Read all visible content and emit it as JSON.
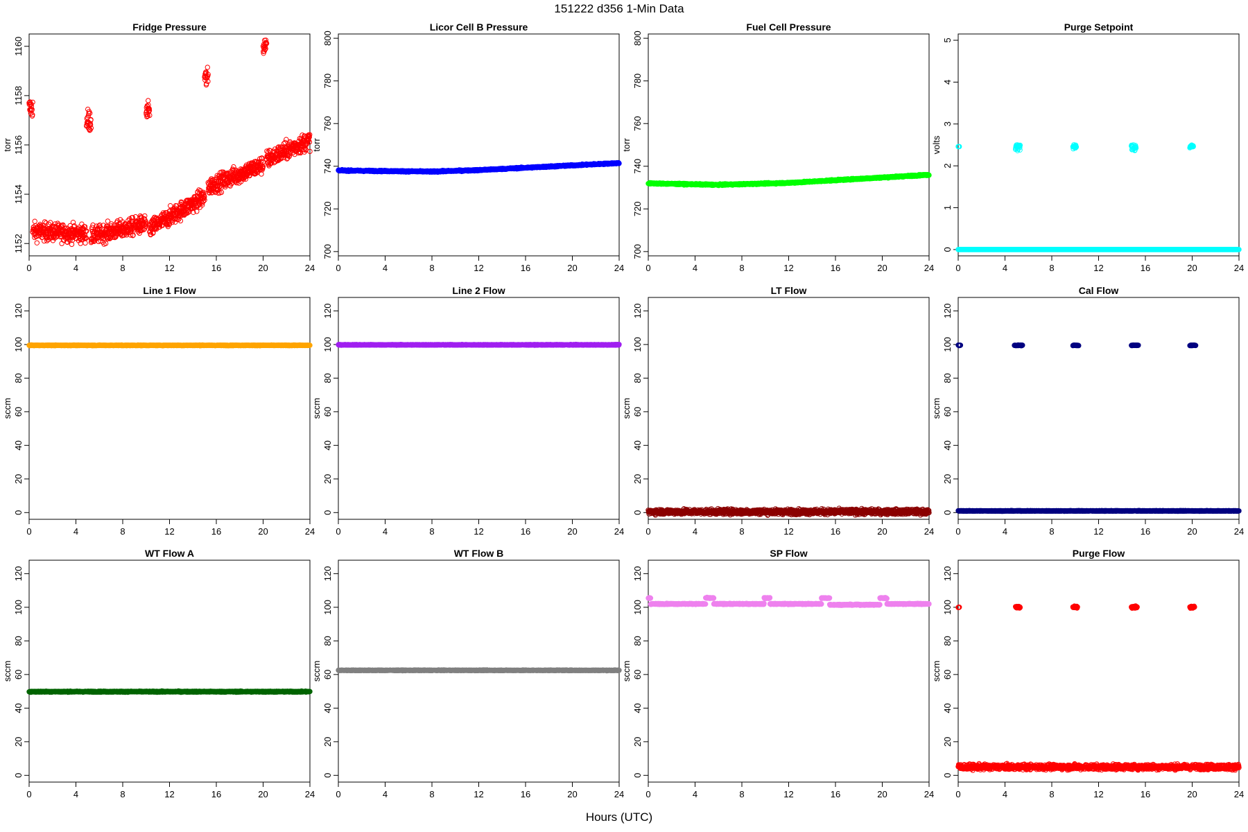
{
  "figure": {
    "title": "151222   d356   1-Min Data",
    "xlabel": "Hours (UTC)"
  },
  "chart_data": [
    {
      "type": "scatter",
      "title": "Fridge Pressure",
      "ylabel": "torr",
      "color": "#ff0000",
      "marker": "open-circle",
      "xlim": [
        0,
        24
      ],
      "ylim": [
        1151.5,
        1160.5
      ],
      "xticks": [
        0,
        4,
        8,
        12,
        16,
        20,
        24
      ],
      "yticks": [
        1152,
        1154,
        1156,
        1158,
        1160
      ],
      "segments": [
        {
          "x": [
            0,
            0.3
          ],
          "y": [
            1157.5,
            1157.5
          ],
          "spread": 0.4
        },
        {
          "x": [
            0.3,
            4.9
          ],
          "y": [
            1152.5,
            1152.4
          ],
          "spread": 0.35
        },
        {
          "x": [
            4.9,
            5.3
          ],
          "y": [
            1157.0,
            1157.0
          ],
          "spread": 0.45
        },
        {
          "x": [
            5.3,
            10.0
          ],
          "y": [
            1152.3,
            1152.8
          ],
          "spread": 0.35
        },
        {
          "x": [
            10.0,
            10.3
          ],
          "y": [
            1157.3,
            1157.3
          ],
          "spread": 0.4
        },
        {
          "x": [
            10.3,
            15.0
          ],
          "y": [
            1152.6,
            1153.9
          ],
          "spread": 0.35
        },
        {
          "x": [
            15.0,
            15.3
          ],
          "y": [
            1158.7,
            1158.7
          ],
          "spread": 0.4
        },
        {
          "x": [
            15.3,
            20.0
          ],
          "y": [
            1154.3,
            1155.2
          ],
          "spread": 0.35
        },
        {
          "x": [
            20.0,
            20.3
          ],
          "y": [
            1160.0,
            1160.0
          ],
          "spread": 0.35
        },
        {
          "x": [
            20.3,
            24.0
          ],
          "y": [
            1155.4,
            1156.2
          ],
          "spread": 0.35
        }
      ]
    },
    {
      "type": "scatter",
      "title": "Licor Cell B Pressure",
      "ylabel": "torr",
      "color": "#0000ff",
      "marker": "filled",
      "xlim": [
        0,
        24
      ],
      "ylim": [
        698,
        802
      ],
      "xticks": [
        0,
        4,
        8,
        12,
        16,
        20,
        24
      ],
      "yticks": [
        700,
        720,
        740,
        760,
        780,
        800
      ],
      "segments": [
        {
          "x": [
            0,
            8
          ],
          "y": [
            738,
            737.5
          ],
          "spread": 0.3
        },
        {
          "x": [
            8,
            12
          ],
          "y": [
            737.5,
            738.2
          ],
          "spread": 0.3
        },
        {
          "x": [
            12,
            24
          ],
          "y": [
            738.2,
            741.5
          ],
          "spread": 0.3
        }
      ]
    },
    {
      "type": "scatter",
      "title": "Fuel Cell Pressure",
      "ylabel": "torr",
      "color": "#00ff00",
      "marker": "filled",
      "xlim": [
        0,
        24
      ],
      "ylim": [
        698,
        802
      ],
      "xticks": [
        0,
        4,
        8,
        12,
        16,
        20,
        24
      ],
      "yticks": [
        700,
        720,
        740,
        760,
        780,
        800
      ],
      "segments": [
        {
          "x": [
            0,
            6
          ],
          "y": [
            732,
            731.3
          ],
          "spread": 0.3
        },
        {
          "x": [
            6,
            12
          ],
          "y": [
            731.3,
            732.2
          ],
          "spread": 0.3
        },
        {
          "x": [
            12,
            24
          ],
          "y": [
            732.2,
            736
          ],
          "spread": 0.3
        }
      ]
    },
    {
      "type": "scatter",
      "title": "Purge Setpoint",
      "ylabel": "volts",
      "color": "#00ffff",
      "marker": "open-circle",
      "xlim": [
        0,
        24
      ],
      "ylim": [
        -0.15,
        5.15
      ],
      "xticks": [
        0,
        4,
        8,
        12,
        16,
        20,
        24
      ],
      "yticks": [
        0,
        1,
        2,
        3,
        4,
        5
      ],
      "segments": [
        {
          "x": [
            0,
            24
          ],
          "y": [
            0,
            0
          ],
          "spread": 0.0
        },
        {
          "x": [
            0.0,
            0.1
          ],
          "y": [
            2.46,
            2.46
          ],
          "spread": 0.0
        },
        {
          "x": [
            4.9,
            5.3
          ],
          "y": [
            2.45,
            2.45
          ],
          "spread": 0.08
        },
        {
          "x": [
            9.8,
            10.1
          ],
          "y": [
            2.45,
            2.45
          ],
          "spread": 0.06
        },
        {
          "x": [
            14.8,
            15.2
          ],
          "y": [
            2.44,
            2.44
          ],
          "spread": 0.08
        },
        {
          "x": [
            19.8,
            20.1
          ],
          "y": [
            2.46,
            2.46
          ],
          "spread": 0.05
        }
      ]
    },
    {
      "type": "scatter",
      "title": "Line 1 Flow",
      "ylabel": "sccm",
      "color": "#ffa500",
      "marker": "filled",
      "xlim": [
        0,
        24
      ],
      "ylim": [
        -4,
        128
      ],
      "xticks": [
        0,
        4,
        8,
        12,
        16,
        20,
        24
      ],
      "yticks": [
        0,
        20,
        40,
        60,
        80,
        100,
        120
      ],
      "segments": [
        {
          "x": [
            0,
            24
          ],
          "y": [
            99.5,
            99.5
          ],
          "spread": 0.2
        }
      ]
    },
    {
      "type": "scatter",
      "title": "Line 2 Flow",
      "ylabel": "sccm",
      "color": "#a020f0",
      "marker": "filled",
      "xlim": [
        0,
        24
      ],
      "ylim": [
        -4,
        128
      ],
      "xticks": [
        0,
        4,
        8,
        12,
        16,
        20,
        24
      ],
      "yticks": [
        0,
        20,
        40,
        60,
        80,
        100,
        120
      ],
      "segments": [
        {
          "x": [
            0,
            24
          ],
          "y": [
            99.8,
            99.8
          ],
          "spread": 0.2
        }
      ]
    },
    {
      "type": "scatter",
      "title": "LT Flow",
      "ylabel": "sccm",
      "color": "#8b0000",
      "marker": "open-circle",
      "xlim": [
        0,
        24
      ],
      "ylim": [
        -4,
        128
      ],
      "xticks": [
        0,
        4,
        8,
        12,
        16,
        20,
        24
      ],
      "yticks": [
        0,
        20,
        40,
        60,
        80,
        100,
        120
      ],
      "segments": [
        {
          "x": [
            0,
            24
          ],
          "y": [
            0.5,
            0.5
          ],
          "spread": 1.5
        }
      ]
    },
    {
      "type": "scatter",
      "title": "Cal Flow",
      "ylabel": "sccm",
      "color": "#000080",
      "marker": "open-circle",
      "xlim": [
        0,
        24
      ],
      "ylim": [
        -4,
        128
      ],
      "xticks": [
        0,
        4,
        8,
        12,
        16,
        20,
        24
      ],
      "yticks": [
        0,
        20,
        40,
        60,
        80,
        100,
        120
      ],
      "segments": [
        {
          "x": [
            0,
            24
          ],
          "y": [
            1,
            1
          ],
          "spread": 0.2
        },
        {
          "x": [
            0.0,
            0.2
          ],
          "y": [
            99.5,
            99.5
          ],
          "spread": 0.2
        },
        {
          "x": [
            4.8,
            5.5
          ],
          "y": [
            99.5,
            99.5
          ],
          "spread": 0.2
        },
        {
          "x": [
            9.8,
            10.3
          ],
          "y": [
            99.5,
            99.5
          ],
          "spread": 0.2
        },
        {
          "x": [
            14.8,
            15.4
          ],
          "y": [
            99.5,
            99.5
          ],
          "spread": 0.2
        },
        {
          "x": [
            19.8,
            20.3
          ],
          "y": [
            99.5,
            99.5
          ],
          "spread": 0.2
        }
      ]
    },
    {
      "type": "scatter",
      "title": "WT Flow A",
      "ylabel": "sccm",
      "color": "#006400",
      "marker": "filled",
      "xlim": [
        0,
        24
      ],
      "ylim": [
        -4,
        128
      ],
      "xticks": [
        0,
        4,
        8,
        12,
        16,
        20,
        24
      ],
      "yticks": [
        0,
        20,
        40,
        60,
        80,
        100,
        120
      ],
      "segments": [
        {
          "x": [
            0,
            24
          ],
          "y": [
            49.8,
            49.8
          ],
          "spread": 0.3
        }
      ]
    },
    {
      "type": "scatter",
      "title": "WT Flow B",
      "ylabel": "sccm",
      "color": "#808080",
      "marker": "filled",
      "xlim": [
        0,
        24
      ],
      "ylim": [
        -4,
        128
      ],
      "xticks": [
        0,
        4,
        8,
        12,
        16,
        20,
        24
      ],
      "yticks": [
        0,
        20,
        40,
        60,
        80,
        100,
        120
      ],
      "segments": [
        {
          "x": [
            0,
            24
          ],
          "y": [
            62.5,
            62.5
          ],
          "spread": 0.2
        }
      ]
    },
    {
      "type": "scatter",
      "title": "SP Flow",
      "ylabel": "sccm",
      "color": "#ee82ee",
      "marker": "filled",
      "xlim": [
        0,
        24
      ],
      "ylim": [
        -4,
        128
      ],
      "xticks": [
        0,
        4,
        8,
        12,
        16,
        20,
        24
      ],
      "yticks": [
        0,
        20,
        40,
        60,
        80,
        100,
        120
      ],
      "segments": [
        {
          "x": [
            0.0,
            0.2
          ],
          "y": [
            105.5,
            105.5
          ],
          "spread": 0.3
        },
        {
          "x": [
            0.2,
            4.9
          ],
          "y": [
            102,
            102
          ],
          "spread": 0.3
        },
        {
          "x": [
            4.9,
            5.6
          ],
          "y": [
            105.5,
            105.5
          ],
          "spread": 0.3
        },
        {
          "x": [
            5.6,
            9.9
          ],
          "y": [
            102,
            102
          ],
          "spread": 0.3
        },
        {
          "x": [
            9.9,
            10.4
          ],
          "y": [
            105.5,
            105.5
          ],
          "spread": 0.3
        },
        {
          "x": [
            10.4,
            14.8
          ],
          "y": [
            102,
            102
          ],
          "spread": 0.3
        },
        {
          "x": [
            14.8,
            15.5
          ],
          "y": [
            105.5,
            105.5
          ],
          "spread": 0.3
        },
        {
          "x": [
            15.5,
            19.8
          ],
          "y": [
            101.5,
            101.5
          ],
          "spread": 0.3
        },
        {
          "x": [
            19.8,
            20.4
          ],
          "y": [
            105.5,
            105.5
          ],
          "spread": 0.3
        },
        {
          "x": [
            20.4,
            24.0
          ],
          "y": [
            102,
            102
          ],
          "spread": 0.3
        }
      ]
    },
    {
      "type": "scatter",
      "title": "Purge Flow",
      "ylabel": "sccm",
      "color": "#ff0000",
      "marker": "open-circle",
      "xlim": [
        0,
        24
      ],
      "ylim": [
        -4,
        128
      ],
      "xticks": [
        0,
        4,
        8,
        12,
        16,
        20,
        24
      ],
      "yticks": [
        0,
        20,
        40,
        60,
        80,
        100,
        120
      ],
      "segments": [
        {
          "x": [
            0,
            24
          ],
          "y": [
            5,
            5
          ],
          "spread": 1.5
        },
        {
          "x": [
            0.0,
            0.1
          ],
          "y": [
            100,
            100
          ],
          "spread": 0.3
        },
        {
          "x": [
            4.9,
            5.3
          ],
          "y": [
            100,
            100
          ],
          "spread": 0.8
        },
        {
          "x": [
            9.8,
            10.2
          ],
          "y": [
            100,
            100
          ],
          "spread": 0.6
        },
        {
          "x": [
            14.8,
            15.3
          ],
          "y": [
            100,
            100
          ],
          "spread": 0.8
        },
        {
          "x": [
            19.8,
            20.2
          ],
          "y": [
            100,
            100
          ],
          "spread": 0.6
        }
      ]
    }
  ]
}
